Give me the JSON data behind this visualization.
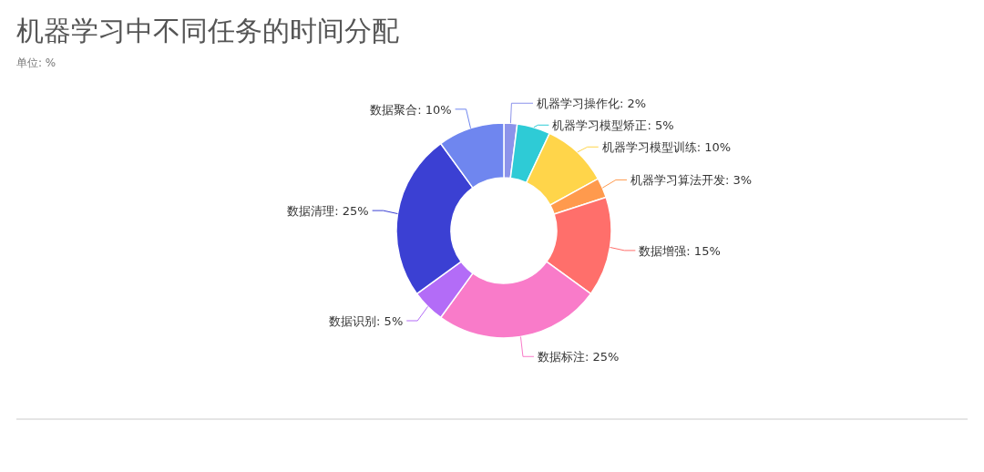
{
  "chart_data": {
    "type": "donut",
    "title": "机器学习中不同任务的时间分配",
    "subtitle": "单位: %",
    "categories": [
      "机器学习操作化",
      "机器学习模型矫正",
      "机器学习模型训练",
      "机器学习算法开发",
      "数据增强",
      "数据标注",
      "数据识别",
      "数据清理",
      "数据聚合"
    ],
    "values": [
      2,
      5,
      10,
      3,
      15,
      25,
      5,
      25,
      10
    ],
    "value_labels": [
      "2%",
      "5%",
      "10%",
      "3%",
      "15%",
      "25%",
      "5%",
      "25%",
      "10%"
    ],
    "colors": [
      "#8c93ea",
      "#2ecbd6",
      "#ffd54a",
      "#ff9a4d",
      "#ff6f6b",
      "#f97bc9",
      "#b36cf7",
      "#3b40d3",
      "#6f86ef"
    ]
  }
}
